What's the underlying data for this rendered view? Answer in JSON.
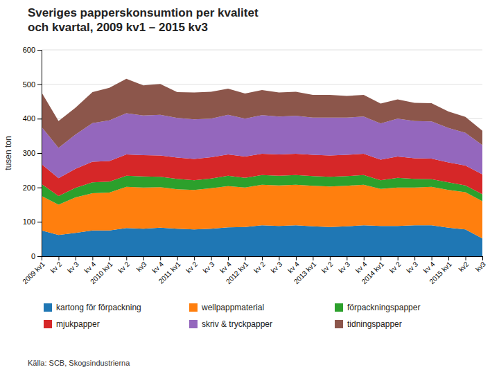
{
  "chart_data": {
    "type": "area",
    "stacked": true,
    "title": "Sveriges papperskonsumtion per kvalitet\noch kvartal, 2009 kv1 – 2015 kv3",
    "y_label": "tusen ton",
    "source": "Källa: SCB, Skogsindustrierna",
    "ylim": [
      0,
      600
    ],
    "yticks": [
      0,
      100,
      200,
      300,
      400,
      500,
      600
    ],
    "grid": true,
    "legend": "bottom",
    "categories": [
      "2009 kv1",
      "kv 2",
      "kv 3",
      "kv 4",
      "2010 kv1",
      "kv 2",
      "kv3",
      "kv 4",
      "2011 kv1",
      "kv 2",
      "kv 3",
      "kv 4",
      "2012 kv1",
      "kv 2",
      "kv 3",
      "kv 4",
      "2013 kv1",
      "kv 2",
      "kv 3",
      "kv 4",
      "2014 kv1",
      "kv 2",
      "kv 3",
      "kv 4",
      "2015 kv1",
      "kv2",
      "kv3"
    ],
    "series": [
      {
        "name": "kartong för förpackning",
        "values": [
          75,
          62,
          68,
          75,
          75,
          82,
          80,
          83,
          80,
          78,
          80,
          84,
          85,
          90,
          88,
          90,
          87,
          85,
          87,
          90,
          88,
          88,
          90,
          90,
          83,
          78,
          52
        ]
      },
      {
        "name": "wellpappmaterial",
        "values": [
          100,
          88,
          103,
          108,
          110,
          120,
          120,
          118,
          115,
          115,
          118,
          120,
          115,
          118,
          118,
          118,
          118,
          118,
          118,
          118,
          108,
          112,
          110,
          112,
          110,
          108,
          108
        ]
      },
      {
        "name": "förpackningspapper",
        "values": [
          35,
          25,
          28,
          32,
          32,
          32,
          32,
          30,
          30,
          28,
          28,
          30,
          28,
          28,
          28,
          28,
          28,
          28,
          28,
          28,
          25,
          28,
          25,
          22,
          22,
          20,
          20
        ]
      },
      {
        "name": "mjukpapper",
        "values": [
          58,
          52,
          55,
          60,
          60,
          62,
          62,
          62,
          62,
          62,
          62,
          62,
          62,
          62,
          62,
          62,
          62,
          62,
          62,
          62,
          60,
          62,
          60,
          60,
          58,
          58,
          58
        ]
      },
      {
        "name": "skriv & tryckpapper",
        "values": [
          108,
          88,
          100,
          112,
          118,
          120,
          115,
          118,
          115,
          115,
          112,
          115,
          110,
          112,
          110,
          110,
          108,
          110,
          108,
          108,
          105,
          110,
          108,
          108,
          100,
          95,
          85
        ]
      },
      {
        "name": "tidningspapper",
        "values": [
          100,
          78,
          78,
          90,
          95,
          100,
          88,
          90,
          75,
          78,
          78,
          76,
          73,
          73,
          70,
          70,
          66,
          66,
          63,
          63,
          58,
          56,
          53,
          53,
          48,
          46,
          42
        ]
      }
    ]
  }
}
